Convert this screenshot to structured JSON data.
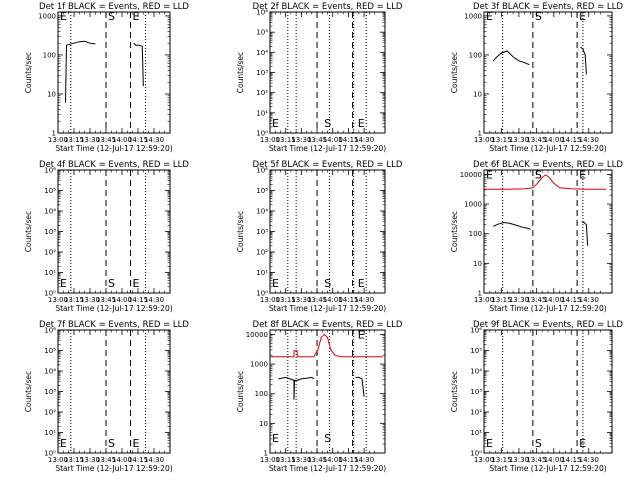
{
  "figure": {
    "xlabel": "Start Time (12-Jul-17 12:59:20)",
    "ylabel": "Counts/sec",
    "accent_colors": {
      "events": "#000000",
      "lld": "#dd0000"
    }
  },
  "chart_data": [
    {
      "type": "line",
      "title": "Det 1f BLACK = Events, RED = LLD",
      "xticks": [
        "13:00",
        "13:15",
        "13:30",
        "13:45",
        "14:00",
        "14:15",
        "14:30"
      ],
      "x_range": [
        780,
        885
      ],
      "xtick_values": [
        780,
        795,
        810,
        825,
        840,
        855,
        870
      ],
      "ytick_labels": [
        "1",
        "10",
        "100",
        "1000"
      ],
      "ytick_exps": [
        0,
        1,
        2,
        3
      ],
      "ylim_exp": [
        0,
        3.1
      ],
      "dotted_x": [
        792,
        862
      ],
      "dashed_x": [
        825,
        848
      ],
      "markers": [
        {
          "text": "E",
          "x": 780,
          "yexp": 3.0
        },
        {
          "text": "S",
          "x": 825,
          "yexp": 3.0
        },
        {
          "text": "E",
          "x": 848,
          "yexp": 3.0
        }
      ],
      "series": [
        {
          "color": "#000000",
          "points": [
            [
              787,
              0.78
            ],
            [
              788,
              2.25
            ],
            [
              795,
              2.3
            ],
            [
              800,
              2.34
            ],
            [
              805,
              2.35
            ],
            [
              810,
              2.3
            ],
            [
              815,
              2.28
            ]
          ]
        },
        {
          "color": "#000000",
          "points": [
            [
              851,
              2.3
            ],
            [
              853,
              2.25
            ],
            [
              856,
              2.25
            ],
            [
              859,
              2.22
            ],
            [
              860,
              1.2
            ]
          ]
        }
      ]
    },
    {
      "type": "line",
      "title": "Det 2f BLACK = Events, RED = LLD",
      "xticks": [
        "13:00",
        "13:15",
        "13:30",
        "13:45",
        "14:00",
        "14:15",
        "14:30"
      ],
      "x_range": [
        780,
        890
      ],
      "xtick_values": [
        780,
        795,
        810,
        825,
        840,
        855,
        870
      ],
      "ytick_labels": [
        "10⁰",
        "10¹",
        "10²",
        "10³",
        "10⁴",
        "10⁵",
        "10⁶"
      ],
      "ytick_exps": [
        0,
        1,
        2,
        3,
        4,
        5,
        6
      ],
      "ylim_exp": [
        0,
        6
      ],
      "dotted_x": [
        797,
        805,
        837,
        860,
        872
      ],
      "dashed_x": [
        825,
        859
      ],
      "markers": [
        {
          "text": "E",
          "x": 780,
          "yexp": 0.5
        },
        {
          "text": "S",
          "x": 830,
          "yexp": 0.5
        },
        {
          "text": "E",
          "x": 862,
          "yexp": 0.5
        }
      ],
      "series": []
    },
    {
      "type": "line",
      "title": "Det 3f BLACK = Events, RED = LLD",
      "xticks": [
        "13:00",
        "13:15",
        "13:30",
        "13:45",
        "14:00",
        "14:15",
        "14:30"
      ],
      "x_range": [
        780,
        890
      ],
      "xtick_values": [
        780,
        795,
        810,
        825,
        840,
        855,
        870
      ],
      "ytick_labels": [
        "1",
        "10",
        "100",
        "1000"
      ],
      "ytick_exps": [
        0,
        1,
        2,
        3
      ],
      "ylim_exp": [
        0,
        3.1
      ],
      "dotted_x": [
        796,
        865
      ],
      "dashed_x": [
        822,
        860
      ],
      "markers": [
        {
          "text": "E",
          "x": 780,
          "yexp": 3.0
        },
        {
          "text": "S",
          "x": 822,
          "yexp": 3.0
        },
        {
          "text": "E",
          "x": 860,
          "yexp": 3.0
        }
      ],
      "series": [
        {
          "color": "#000000",
          "points": [
            [
              788,
              1.85
            ],
            [
              791,
              1.95
            ],
            [
              795,
              2.05
            ],
            [
              800,
              2.1
            ],
            [
              805,
              1.95
            ],
            [
              810,
              1.85
            ],
            [
              815,
              1.8
            ],
            [
              819,
              1.75
            ]
          ]
        },
        {
          "color": "#000000",
          "points": [
            [
              863,
              2.2
            ],
            [
              865,
              2.15
            ],
            [
              867,
              2.0
            ],
            [
              868,
              1.5
            ]
          ]
        }
      ]
    },
    {
      "type": "line",
      "title": "Det 4f BLACK = Events, RED = LLD",
      "xticks": [
        "13:00",
        "13:15",
        "13:30",
        "13:45",
        "14:00",
        "14:15",
        "14:30"
      ],
      "x_range": [
        780,
        885
      ],
      "xtick_values": [
        780,
        795,
        810,
        825,
        840,
        855,
        870
      ],
      "ytick_labels": [
        "10⁰",
        "10¹",
        "10²",
        "10³",
        "10⁴",
        "10⁵",
        "10⁶"
      ],
      "ytick_exps": [
        0,
        1,
        2,
        3,
        4,
        5,
        6
      ],
      "ylim_exp": [
        0,
        6
      ],
      "dotted_x": [
        792,
        862
      ],
      "dashed_x": [
        825,
        848
      ],
      "markers": [
        {
          "text": "E",
          "x": 780,
          "yexp": 0.5
        },
        {
          "text": "S",
          "x": 825,
          "yexp": 0.5
        },
        {
          "text": "E",
          "x": 848,
          "yexp": 0.5
        }
      ],
      "series": []
    },
    {
      "type": "line",
      "title": "Det 5f BLACK = Events, RED = LLD",
      "xticks": [
        "13:00",
        "13:15",
        "13:30",
        "13:45",
        "14:00",
        "14:15",
        "14:30"
      ],
      "x_range": [
        780,
        890
      ],
      "xtick_values": [
        780,
        795,
        810,
        825,
        840,
        855,
        870
      ],
      "ytick_labels": [
        "10⁰",
        "10¹",
        "10²",
        "10³",
        "10⁴",
        "10⁵",
        "10⁶"
      ],
      "ytick_exps": [
        0,
        1,
        2,
        3,
        4,
        5,
        6
      ],
      "ylim_exp": [
        0,
        6
      ],
      "dotted_x": [
        797,
        805,
        837,
        860,
        872
      ],
      "dashed_x": [
        825,
        859
      ],
      "markers": [
        {
          "text": "E",
          "x": 780,
          "yexp": 0.5
        },
        {
          "text": "S",
          "x": 830,
          "yexp": 0.5
        },
        {
          "text": "E",
          "x": 862,
          "yexp": 0.5
        }
      ],
      "series": []
    },
    {
      "type": "line",
      "title": "Det 6f BLACK = Events, RED = LLD",
      "xticks": [
        "13:00",
        "13:15",
        "13:30",
        "13:45",
        "14:00",
        "14:15",
        "14:30"
      ],
      "x_range": [
        780,
        890
      ],
      "xtick_values": [
        780,
        795,
        810,
        825,
        840,
        855,
        870
      ],
      "ytick_labels": [
        "1",
        "10",
        "100",
        "1000",
        "10000"
      ],
      "ytick_exps": [
        0,
        1,
        2,
        3,
        4
      ],
      "ylim_exp": [
        0,
        4.15
      ],
      "dotted_x": [
        796,
        865
      ],
      "dashed_x": [
        822,
        860
      ],
      "markers": [
        {
          "text": "E",
          "x": 780,
          "yexp": 4.0
        },
        {
          "text": "S",
          "x": 822,
          "yexp": 4.0
        },
        {
          "text": "E",
          "x": 860,
          "yexp": 4.0
        }
      ],
      "series": [
        {
          "color": "#dd0000",
          "points": [
            [
              780,
              3.5
            ],
            [
              800,
              3.5
            ],
            [
              815,
              3.52
            ],
            [
              822,
              3.55
            ],
            [
              826,
              3.7
            ],
            [
              830,
              3.9
            ],
            [
              833,
              3.98
            ],
            [
              836,
              3.9
            ],
            [
              840,
              3.7
            ],
            [
              845,
              3.55
            ],
            [
              855,
              3.52
            ],
            [
              870,
              3.5
            ],
            [
              885,
              3.5
            ]
          ]
        },
        {
          "color": "#000000",
          "points": [
            [
              788,
              2.25
            ],
            [
              792,
              2.32
            ],
            [
              797,
              2.38
            ],
            [
              802,
              2.35
            ],
            [
              808,
              2.28
            ],
            [
              813,
              2.22
            ],
            [
              818,
              2.18
            ],
            [
              820,
              2.15
            ]
          ]
        },
        {
          "color": "#000000",
          "points": [
            [
              864,
              2.4
            ],
            [
              866,
              2.38
            ],
            [
              868,
              2.3
            ],
            [
              869,
              1.6
            ]
          ]
        }
      ]
    },
    {
      "type": "line",
      "title": "Det 7f BLACK = Events, RED = LLD",
      "xticks": [
        "13:00",
        "13:15",
        "13:30",
        "13:45",
        "14:00",
        "14:15",
        "14:30"
      ],
      "x_range": [
        780,
        885
      ],
      "xtick_values": [
        780,
        795,
        810,
        825,
        840,
        855,
        870
      ],
      "ytick_labels": [
        "10⁰",
        "10¹",
        "10²",
        "10³",
        "10⁴",
        "10⁵",
        "10⁶"
      ],
      "ytick_exps": [
        0,
        1,
        2,
        3,
        4,
        5,
        6
      ],
      "ylim_exp": [
        0,
        6
      ],
      "dotted_x": [
        792,
        862
      ],
      "dashed_x": [
        825,
        848
      ],
      "markers": [
        {
          "text": "E",
          "x": 780,
          "yexp": 0.5
        },
        {
          "text": "S",
          "x": 825,
          "yexp": 0.5
        },
        {
          "text": "E",
          "x": 848,
          "yexp": 0.5
        }
      ],
      "series": []
    },
    {
      "type": "line",
      "title": "Det 8f BLACK = Events, RED = LLD",
      "xticks": [
        "13:00",
        "13:15",
        "13:30",
        "13:45",
        "14:00",
        "14:15",
        "14:30"
      ],
      "x_range": [
        780,
        890
      ],
      "xtick_values": [
        780,
        795,
        810,
        825,
        840,
        855,
        870
      ],
      "ytick_labels": [
        "1",
        "10",
        "100",
        "1000",
        "10000"
      ],
      "ytick_exps": [
        0,
        1,
        2,
        3,
        4
      ],
      "ylim_exp": [
        0,
        4.15
      ],
      "dotted_x": [
        797,
        805,
        837,
        860,
        872
      ],
      "dashed_x": [
        825,
        859
      ],
      "markers": [
        {
          "text": "E",
          "x": 780,
          "yexp": 0.5
        },
        {
          "text": "S",
          "x": 830,
          "yexp": 0.5
        },
        {
          "text": "E",
          "x": 862,
          "yexp": 4.0
        }
      ],
      "series": [
        {
          "color": "#dd0000",
          "points": [
            [
              780,
              3.25
            ],
            [
              800,
              3.25
            ],
            [
              803,
              3.25
            ],
            [
              803,
              3.45
            ],
            [
              806,
              3.45
            ],
            [
              806,
              3.25
            ],
            [
              822,
              3.25
            ],
            [
              826,
              3.5
            ],
            [
              829,
              3.9
            ],
            [
              832,
              4.0
            ],
            [
              835,
              3.9
            ],
            [
              838,
              3.5
            ],
            [
              842,
              3.3
            ],
            [
              848,
              3.25
            ],
            [
              870,
              3.25
            ],
            [
              888,
              3.25
            ]
          ]
        },
        {
          "color": "#000000",
          "points": [
            [
              788,
              2.5
            ],
            [
              791,
              2.52
            ],
            [
              795,
              2.55
            ],
            [
              799,
              2.5
            ],
            [
              803,
              2.45
            ],
            [
              803,
              1.8
            ],
            [
              803.5,
              2.45
            ],
            [
              806,
              2.45
            ],
            [
              810,
              2.5
            ],
            [
              815,
              2.52
            ],
            [
              820,
              2.55
            ],
            [
              822,
              2.5
            ]
          ]
        },
        {
          "color": "#000000",
          "points": [
            [
              862,
              2.55
            ],
            [
              865,
              2.55
            ],
            [
              868,
              2.5
            ],
            [
              870,
              1.9
            ]
          ]
        }
      ]
    },
    {
      "type": "line",
      "title": "Det 9f BLACK = Events, RED = LLD",
      "xticks": [
        "13:00",
        "13:15",
        "13:30",
        "13:45",
        "14:00",
        "14:15",
        "14:30"
      ],
      "x_range": [
        780,
        890
      ],
      "xtick_values": [
        780,
        795,
        810,
        825,
        840,
        855,
        870
      ],
      "ytick_labels": [
        "10⁰",
        "10¹",
        "10²",
        "10³",
        "10⁴",
        "10⁵",
        "10⁶"
      ],
      "ytick_exps": [
        0,
        1,
        2,
        3,
        4,
        5,
        6
      ],
      "ylim_exp": [
        0,
        6
      ],
      "dotted_x": [
        796,
        865
      ],
      "dashed_x": [
        822,
        860
      ],
      "markers": [
        {
          "text": "E",
          "x": 780,
          "yexp": 0.5
        },
        {
          "text": "S",
          "x": 822,
          "yexp": 0.5
        },
        {
          "text": "E",
          "x": 860,
          "yexp": 0.5
        }
      ],
      "series": []
    }
  ]
}
